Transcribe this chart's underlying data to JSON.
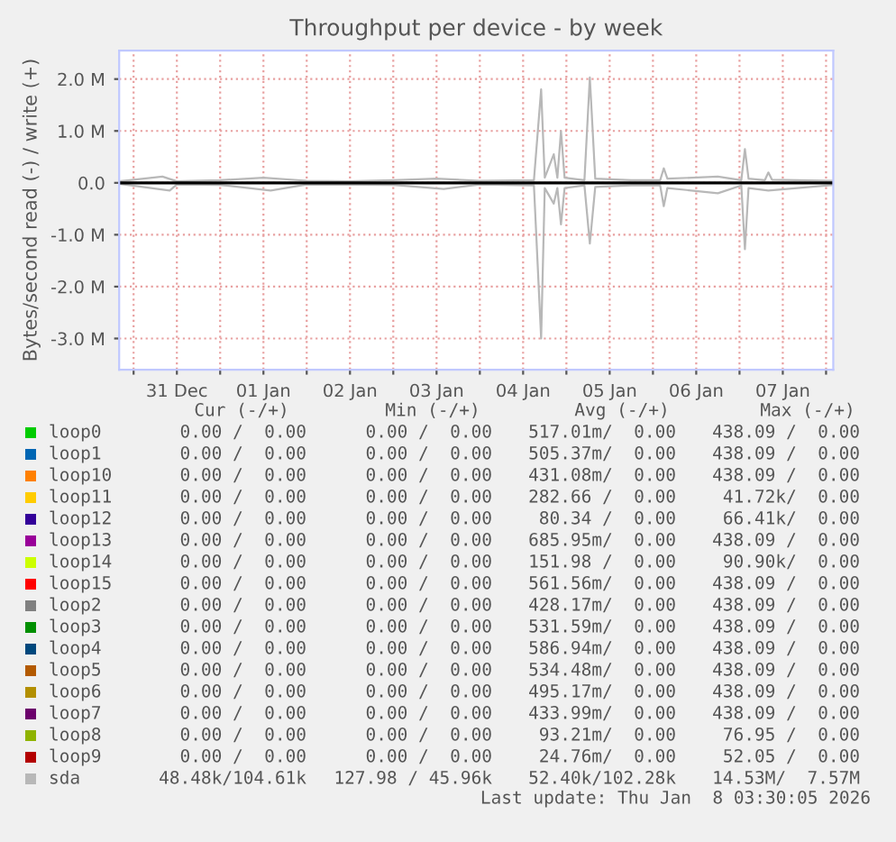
{
  "chart_data": {
    "type": "line",
    "title": "Throughput per device - by week",
    "ylabel": "Bytes/second read (-) / write (+)",
    "xlim": [
      "2025-12-30T20:00",
      "2026-01-08T02:00"
    ],
    "xticks": [
      {
        "value": "2025-12-31T00:00",
        "label": null
      },
      {
        "value": "2025-12-31T12:00",
        "label": "31 Dec"
      },
      {
        "value": "2026-01-01T00:00",
        "label": null
      },
      {
        "value": "2026-01-01T12:00",
        "label": "01 Jan"
      },
      {
        "value": "2026-01-02T00:00",
        "label": null
      },
      {
        "value": "2026-01-02T12:00",
        "label": "02 Jan"
      },
      {
        "value": "2026-01-03T00:00",
        "label": null
      },
      {
        "value": "2026-01-03T12:00",
        "label": "03 Jan"
      },
      {
        "value": "2026-01-04T00:00",
        "label": null
      },
      {
        "value": "2026-01-04T12:00",
        "label": "04 Jan"
      },
      {
        "value": "2026-01-05T00:00",
        "label": null
      },
      {
        "value": "2026-01-05T12:00",
        "label": "05 Jan"
      },
      {
        "value": "2026-01-06T00:00",
        "label": null
      },
      {
        "value": "2026-01-06T12:00",
        "label": "06 Jan"
      },
      {
        "value": "2026-01-07T00:00",
        "label": null
      },
      {
        "value": "2026-01-07T12:00",
        "label": "07 Jan"
      },
      {
        "value": "2026-01-08T00:00",
        "label": null
      }
    ],
    "ylim": [
      -3600000,
      2550000
    ],
    "yticks": [
      {
        "value": -3000000,
        "label": "-3.0 M"
      },
      {
        "value": -2000000,
        "label": "-2.0 M"
      },
      {
        "value": -1000000,
        "label": "-1.0 M"
      },
      {
        "value": 0,
        "label": "0.0"
      },
      {
        "value": 1000000,
        "label": "1.0 M"
      },
      {
        "value": 2000000,
        "label": "2.0 M"
      }
    ],
    "grid": true,
    "legend": "bottom",
    "ref_lines": [
      {
        "axis": "y",
        "value": 0,
        "label": null,
        "color": "#000000"
      }
    ],
    "series": [
      {
        "name": "loop0",
        "color": "#00cc00",
        "values": [
          null,
          null
        ]
      },
      {
        "name": "loop1",
        "color": "#0066b3",
        "values": [
          null,
          null
        ]
      },
      {
        "name": "loop10",
        "color": "#ff8000",
        "values": [
          null,
          null
        ]
      },
      {
        "name": "loop11",
        "color": "#ffcc00",
        "values": [
          null,
          null
        ]
      },
      {
        "name": "loop12",
        "color": "#330099",
        "values": [
          null,
          null
        ]
      },
      {
        "name": "loop13",
        "color": "#990099",
        "values": [
          null,
          null
        ]
      },
      {
        "name": "loop14",
        "color": "#ccff00",
        "values": [
          null,
          null
        ]
      },
      {
        "name": "loop15",
        "color": "#ff0000",
        "values": [
          null,
          null
        ]
      },
      {
        "name": "loop2",
        "color": "#808080",
        "values": [
          null,
          null
        ]
      },
      {
        "name": "loop3",
        "color": "#008f00",
        "values": [
          null,
          null
        ]
      },
      {
        "name": "loop4",
        "color": "#00487d",
        "values": [
          null,
          null
        ]
      },
      {
        "name": "loop5",
        "color": "#b35a00",
        "values": [
          null,
          null
        ]
      },
      {
        "name": "loop6",
        "color": "#b38f00",
        "values": [
          null,
          null
        ]
      },
      {
        "name": "loop7",
        "color": "#6b006b",
        "values": [
          null,
          null
        ]
      },
      {
        "name": "loop8",
        "color": "#8fb300",
        "values": [
          null,
          null
        ]
      },
      {
        "name": "loop9",
        "color": "#b30000",
        "values": [
          null,
          null
        ]
      },
      {
        "name": "sda",
        "color": "#b8b8b8",
        "x": [
          "2025-12-30T20:00",
          "2025-12-31T08:00",
          "2025-12-31T12:00",
          "2026-01-01T00:00",
          "2026-01-01T12:00",
          "2026-01-02T00:00",
          "2026-01-02T12:00",
          "2026-01-03T00:00",
          "2026-01-03T12:00",
          "2026-01-04T00:00",
          "2026-01-04T15:00",
          "2026-01-04T17:00",
          "2026-01-04T18:00",
          "2026-01-04T20:30",
          "2026-01-04T21:30",
          "2026-01-04T22:30",
          "2026-01-04T23:30",
          "2026-01-05T05:00",
          "2026-01-05T06:30",
          "2026-01-05T08:00",
          "2026-01-05T18:00",
          "2026-01-06T02:00",
          "2026-01-06T03:00",
          "2026-01-06T04:00",
          "2026-01-06T18:00",
          "2026-01-07T00:30",
          "2026-01-07T01:30",
          "2026-01-07T02:30",
          "2026-01-07T07:00",
          "2026-01-07T08:00",
          "2026-01-07T09:00",
          "2026-01-08T02:00"
        ],
        "values": [
          30000,
          120000,
          30000,
          50000,
          100000,
          40000,
          30000,
          50000,
          80000,
          40000,
          50000,
          1800000,
          100000,
          550000,
          100000,
          1000000,
          100000,
          50000,
          2030000,
          80000,
          50000,
          50000,
          280000,
          80000,
          120000,
          50000,
          650000,
          80000,
          50000,
          200000,
          60000,
          40000
        ]
      },
      {
        "color": "#b8b8b8",
        "x": [
          "2025-12-30T20:00",
          "2025-12-31T10:00",
          "2025-12-31T12:00",
          "2026-01-01T00:00",
          "2026-01-01T14:00",
          "2026-01-02T00:00",
          "2026-01-03T00:00",
          "2026-01-03T14:00",
          "2026-01-04T00:00",
          "2026-01-04T15:00",
          "2026-01-04T17:00",
          "2026-01-04T18:00",
          "2026-01-04T20:30",
          "2026-01-04T21:30",
          "2026-01-04T22:30",
          "2026-01-04T23:30",
          "2026-01-05T05:00",
          "2026-01-05T06:30",
          "2026-01-05T08:00",
          "2026-01-05T18:00",
          "2026-01-06T02:00",
          "2026-01-06T03:00",
          "2026-01-06T04:00",
          "2026-01-06T18:00",
          "2026-01-07T00:30",
          "2026-01-07T01:30",
          "2026-01-07T02:30",
          "2026-01-07T08:00",
          "2026-01-08T02:00"
        ],
        "values": [
          -20000,
          -150000,
          -30000,
          -40000,
          -150000,
          -30000,
          -40000,
          -120000,
          -30000,
          -50000,
          -3000000,
          -100000,
          -400000,
          -100000,
          -800000,
          -100000,
          -50000,
          -1170000,
          -80000,
          -50000,
          -50000,
          -450000,
          -100000,
          -200000,
          -50000,
          -1280000,
          -100000,
          -150000,
          -40000
        ]
      }
    ],
    "annotations": [
      "Cur (-/+)",
      "Min (-/+)",
      "Avg (-/+)",
      "Max (-/+)",
      "0.00 /  0.00",
      "0.00 /  0.00",
      "517.01m/  0.00",
      "438.09 /  0.00",
      "0.00 /  0.00",
      "0.00 /  0.00",
      "505.37m/  0.00",
      "438.09 /  0.00",
      "0.00 /  0.00",
      "0.00 /  0.00",
      "431.08m/  0.00",
      "438.09 /  0.00",
      "0.00 /  0.00",
      "0.00 /  0.00",
      "282.66 /  0.00",
      "41.72k/  0.00",
      "0.00 /  0.00",
      "0.00 /  0.00",
      "80.34 /  0.00",
      "66.41k/  0.00",
      "0.00 /  0.00",
      "0.00 /  0.00",
      "685.95m/  0.00",
      "438.09 /  0.00",
      "0.00 /  0.00",
      "0.00 /  0.00",
      "151.98 /  0.00",
      "90.90k/  0.00",
      "0.00 /  0.00",
      "0.00 /  0.00",
      "561.56m/  0.00",
      "438.09 /  0.00",
      "0.00 /  0.00",
      "0.00 /  0.00",
      "428.17m/  0.00",
      "438.09 /  0.00",
      "0.00 /  0.00",
      "0.00 /  0.00",
      "531.59m/  0.00",
      "438.09 /  0.00",
      "0.00 /  0.00",
      "0.00 /  0.00",
      "586.94m/  0.00",
      "438.09 /  0.00",
      "0.00 /  0.00",
      "0.00 /  0.00",
      "534.48m/  0.00",
      "438.09 /  0.00",
      "0.00 /  0.00",
      "0.00 /  0.00",
      "495.17m/  0.00",
      "438.09 /  0.00",
      "0.00 /  0.00",
      "0.00 /  0.00",
      "433.99m/  0.00",
      "438.09 /  0.00",
      "0.00 /  0.00",
      "0.00 /  0.00",
      "93.21m/  0.00",
      "76.95 /  0.00",
      "0.00 /  0.00",
      "0.00 /  0.00",
      "24.76m/  0.00",
      "52.05 /  0.00",
      "48.48k/104.61k",
      "127.98 / 45.96k",
      "52.40k/102.28k",
      "14.53M/  7.57M",
      "Last update: Thu Jan  8 03:30:05 2026"
    ]
  }
}
